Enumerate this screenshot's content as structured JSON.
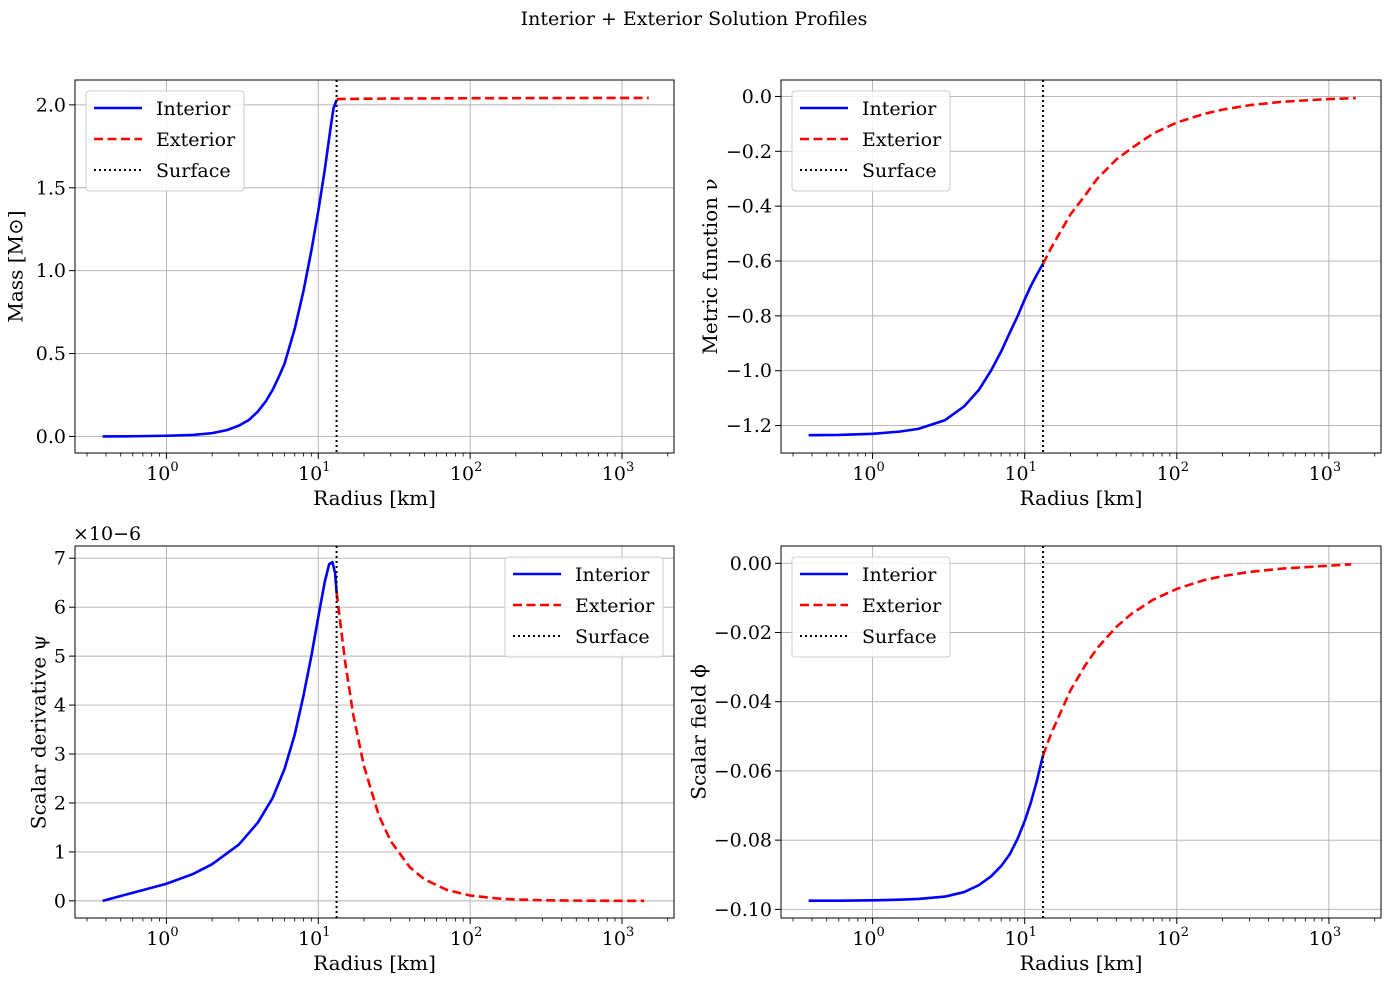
{
  "figure_title": "Interior + Exterior Solution Profiles",
  "chart_data": [
    {
      "type": "line",
      "id": "mass",
      "xlabel": "Radius [km]",
      "ylabel": "Mass [M⊙]",
      "xscale": "log",
      "xlim": [
        0.25,
        2200
      ],
      "ylim": [
        -0.1,
        2.15
      ],
      "grid": true,
      "legend_position": "top-left",
      "surface_radius": 13.2,
      "xticks": [
        {
          "value": 1,
          "label": "10",
          "exp": "0"
        },
        {
          "value": 10,
          "label": "10",
          "exp": "1"
        },
        {
          "value": 100,
          "label": "10",
          "exp": "2"
        },
        {
          "value": 1000,
          "label": "10",
          "exp": "3"
        }
      ],
      "yticks": [
        {
          "value": 0,
          "label": "0.0"
        },
        {
          "value": 0.5,
          "label": "0.5"
        },
        {
          "value": 1,
          "label": "1.0"
        },
        {
          "value": 1.5,
          "label": "1.5"
        },
        {
          "value": 2,
          "label": "2.0"
        }
      ],
      "offset_text": "",
      "series": [
        {
          "name": "Interior",
          "style": "solid",
          "color": "#0000ff",
          "x": [
            0.38,
            0.6,
            1.0,
            1.5,
            2.0,
            2.5,
            3.0,
            3.5,
            4.0,
            4.5,
            5.0,
            5.5,
            6.0,
            7.0,
            8.0,
            9.0,
            10.0,
            11.0,
            12.0,
            12.6,
            13.2
          ],
          "y": [
            0.0,
            0.001,
            0.004,
            0.009,
            0.02,
            0.038,
            0.065,
            0.1,
            0.15,
            0.21,
            0.28,
            0.36,
            0.44,
            0.65,
            0.88,
            1.12,
            1.36,
            1.6,
            1.85,
            1.98,
            2.03
          ]
        },
        {
          "name": "Exterior",
          "style": "dashed",
          "color": "#ff0000",
          "x": [
            13.2,
            20,
            50,
            100,
            300,
            1000,
            1500
          ],
          "y": [
            2.035,
            2.037,
            2.039,
            2.04,
            2.041,
            2.042,
            2.042
          ]
        },
        {
          "name": "Surface",
          "style": "dotted",
          "color": "#000000"
        }
      ]
    },
    {
      "type": "line",
      "id": "metric",
      "xlabel": "Radius [km]",
      "ylabel": "Metric function ν",
      "xscale": "log",
      "xlim": [
        0.25,
        2200
      ],
      "ylim": [
        -1.3,
        0.06
      ],
      "grid": true,
      "legend_position": "top-left",
      "surface_radius": 13.2,
      "xticks": [
        {
          "value": 1,
          "label": "10",
          "exp": "0"
        },
        {
          "value": 10,
          "label": "10",
          "exp": "1"
        },
        {
          "value": 100,
          "label": "10",
          "exp": "2"
        },
        {
          "value": 1000,
          "label": "10",
          "exp": "3"
        }
      ],
      "yticks": [
        {
          "value": 0,
          "label": "0.0"
        },
        {
          "value": -0.2,
          "label": "−0.2"
        },
        {
          "value": -0.4,
          "label": "−0.4"
        },
        {
          "value": -0.6,
          "label": "−0.6"
        },
        {
          "value": -0.8,
          "label": "−0.8"
        },
        {
          "value": -1.0,
          "label": "−1.0"
        },
        {
          "value": -1.2,
          "label": "−1.2"
        }
      ],
      "offset_text": "",
      "series": [
        {
          "name": "Interior",
          "style": "solid",
          "color": "#0000ff",
          "x": [
            0.38,
            0.6,
            1.0,
            1.5,
            2.0,
            3.0,
            4.0,
            5.0,
            6.0,
            7.0,
            8.0,
            9.0,
            10.0,
            11.0,
            12.0,
            13.2
          ],
          "y": [
            -1.235,
            -1.234,
            -1.23,
            -1.222,
            -1.212,
            -1.18,
            -1.13,
            -1.07,
            -1.0,
            -0.93,
            -0.86,
            -0.8,
            -0.74,
            -0.69,
            -0.65,
            -0.61
          ]
        },
        {
          "name": "Exterior",
          "style": "dashed",
          "color": "#ff0000",
          "x": [
            13.2,
            15,
            20,
            25,
            30,
            40,
            50,
            70,
            100,
            150,
            200,
            300,
            500,
            1000,
            1500
          ],
          "y": [
            -0.61,
            -0.55,
            -0.43,
            -0.36,
            -0.3,
            -0.23,
            -0.19,
            -0.135,
            -0.095,
            -0.064,
            -0.048,
            -0.032,
            -0.019,
            -0.0095,
            -0.006
          ]
        },
        {
          "name": "Surface",
          "style": "dotted",
          "color": "#000000"
        }
      ]
    },
    {
      "type": "line",
      "id": "scalar-derivative",
      "xlabel": "Radius [km]",
      "ylabel": "Scalar derivative ψ",
      "xscale": "log",
      "xlim": [
        0.25,
        2200
      ],
      "ylim": [
        -0.35,
        7.25
      ],
      "grid": true,
      "legend_position": "top-right",
      "surface_radius": 13.2,
      "xticks": [
        {
          "value": 1,
          "label": "10",
          "exp": "0"
        },
        {
          "value": 10,
          "label": "10",
          "exp": "1"
        },
        {
          "value": 100,
          "label": "10",
          "exp": "2"
        },
        {
          "value": 1000,
          "label": "10",
          "exp": "3"
        }
      ],
      "yticks": [
        {
          "value": 0,
          "label": "0"
        },
        {
          "value": 1,
          "label": "1"
        },
        {
          "value": 2,
          "label": "2"
        },
        {
          "value": 3,
          "label": "3"
        },
        {
          "value": 4,
          "label": "4"
        },
        {
          "value": 5,
          "label": "5"
        },
        {
          "value": 6,
          "label": "6"
        },
        {
          "value": 7,
          "label": "7"
        }
      ],
      "offset_text": "×10−6",
      "series": [
        {
          "name": "Interior",
          "style": "solid",
          "color": "#0000ff",
          "x": [
            0.38,
            0.5,
            0.7,
            1.0,
            1.5,
            2.0,
            3.0,
            4.0,
            5.0,
            6.0,
            7.0,
            8.0,
            9.0,
            10.0,
            11.0,
            11.8,
            12.4,
            12.9,
            13.2
          ],
          "y": [
            0.0,
            0.1,
            0.22,
            0.35,
            0.55,
            0.75,
            1.15,
            1.6,
            2.1,
            2.7,
            3.4,
            4.2,
            5.0,
            5.8,
            6.5,
            6.88,
            6.92,
            6.7,
            6.3
          ]
        },
        {
          "name": "Exterior",
          "style": "dashed",
          "color": "#ff0000",
          "x": [
            13.2,
            15,
            17,
            20,
            25,
            30,
            40,
            50,
            70,
            100,
            150,
            200,
            300,
            500,
            1000,
            1400
          ],
          "y": [
            6.3,
            4.9,
            3.8,
            2.75,
            1.75,
            1.22,
            0.69,
            0.44,
            0.225,
            0.11,
            0.05,
            0.028,
            0.012,
            0.005,
            0.001,
            0.0005
          ]
        },
        {
          "name": "Surface",
          "style": "dotted",
          "color": "#000000"
        }
      ]
    },
    {
      "type": "line",
      "id": "scalar-field",
      "xlabel": "Radius [km]",
      "ylabel": "Scalar field ϕ",
      "xscale": "log",
      "xlim": [
        0.25,
        2200
      ],
      "ylim": [
        -0.1025,
        0.005
      ],
      "grid": true,
      "legend_position": "top-left",
      "surface_radius": 13.2,
      "xticks": [
        {
          "value": 1,
          "label": "10",
          "exp": "0"
        },
        {
          "value": 10,
          "label": "10",
          "exp": "1"
        },
        {
          "value": 100,
          "label": "10",
          "exp": "2"
        },
        {
          "value": 1000,
          "label": "10",
          "exp": "3"
        }
      ],
      "yticks": [
        {
          "value": 0,
          "label": "0.00"
        },
        {
          "value": -0.02,
          "label": "−0.02"
        },
        {
          "value": -0.04,
          "label": "−0.04"
        },
        {
          "value": -0.06,
          "label": "−0.06"
        },
        {
          "value": -0.08,
          "label": "−0.08"
        },
        {
          "value": -0.1,
          "label": "−0.10"
        }
      ],
      "offset_text": "",
      "series": [
        {
          "name": "Interior",
          "style": "solid",
          "color": "#0000ff",
          "x": [
            0.38,
            0.6,
            1.0,
            1.5,
            2.0,
            3.0,
            4.0,
            5.0,
            6.0,
            7.0,
            8.0,
            9.0,
            10.0,
            11.0,
            12.0,
            13.2
          ],
          "y": [
            -0.0975,
            -0.0975,
            -0.0974,
            -0.0972,
            -0.097,
            -0.0963,
            -0.095,
            -0.093,
            -0.0905,
            -0.0875,
            -0.084,
            -0.0795,
            -0.0745,
            -0.069,
            -0.063,
            -0.0555
          ]
        },
        {
          "name": "Exterior",
          "style": "dashed",
          "color": "#ff0000",
          "x": [
            13.2,
            15,
            20,
            25,
            30,
            40,
            50,
            70,
            100,
            150,
            200,
            300,
            500,
            1000,
            1400
          ],
          "y": [
            -0.0555,
            -0.049,
            -0.0367,
            -0.0295,
            -0.0245,
            -0.0184,
            -0.0147,
            -0.0105,
            -0.0074,
            -0.0049,
            -0.0037,
            -0.0025,
            -0.0015,
            -0.0007,
            -0.0003
          ]
        },
        {
          "name": "Surface",
          "style": "dotted",
          "color": "#000000"
        }
      ]
    }
  ]
}
